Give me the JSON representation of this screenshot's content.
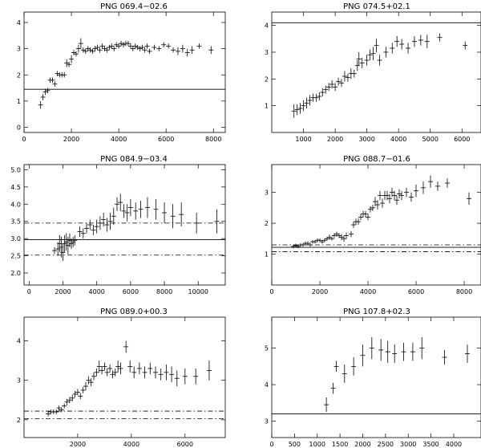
{
  "chart_data": [
    {
      "type": "scatter",
      "title": "PNG 069.4−02.6",
      "xlim": [
        0,
        8500
      ],
      "ylim": [
        -0.2,
        4.4
      ],
      "xticks": [
        0,
        2000,
        4000,
        6000,
        8000
      ],
      "yticks": [
        0,
        1,
        2,
        3,
        4
      ],
      "hlines": [
        {
          "y": 1.45,
          "style": "solid"
        }
      ],
      "points": [
        [
          700,
          0.85,
          0.15
        ],
        [
          800,
          1.15,
          0.12
        ],
        [
          900,
          1.35,
          0.12
        ],
        [
          1000,
          1.4,
          0.1
        ],
        [
          1100,
          1.8,
          0.1
        ],
        [
          1200,
          1.8,
          0.1
        ],
        [
          1300,
          1.65,
          0.1
        ],
        [
          1400,
          2.05,
          0.1
        ],
        [
          1500,
          2.0,
          0.1
        ],
        [
          1600,
          2.0,
          0.1
        ],
        [
          1700,
          2.0,
          0.1
        ],
        [
          1800,
          2.45,
          0.15
        ],
        [
          1900,
          2.4,
          0.1
        ],
        [
          2000,
          2.6,
          0.15
        ],
        [
          2100,
          2.85,
          0.1
        ],
        [
          2200,
          2.8,
          0.1
        ],
        [
          2300,
          3.0,
          0.15
        ],
        [
          2400,
          3.2,
          0.2
        ],
        [
          2500,
          2.95,
          0.1
        ],
        [
          2600,
          2.9,
          0.1
        ],
        [
          2700,
          3.0,
          0.1
        ],
        [
          2800,
          2.95,
          0.1
        ],
        [
          2900,
          2.9,
          0.1
        ],
        [
          3000,
          3.0,
          0.1
        ],
        [
          3100,
          3.05,
          0.1
        ],
        [
          3200,
          2.95,
          0.1
        ],
        [
          3300,
          3.1,
          0.1
        ],
        [
          3400,
          3.0,
          0.1
        ],
        [
          3500,
          2.95,
          0.1
        ],
        [
          3600,
          3.05,
          0.1
        ],
        [
          3700,
          3.1,
          0.1
        ],
        [
          3800,
          3.0,
          0.1
        ],
        [
          3900,
          3.15,
          0.1
        ],
        [
          4000,
          3.1,
          0.1
        ],
        [
          4100,
          3.2,
          0.1
        ],
        [
          4200,
          3.15,
          0.1
        ],
        [
          4300,
          3.2,
          0.1
        ],
        [
          4400,
          3.2,
          0.1
        ],
        [
          4500,
          3.1,
          0.1
        ],
        [
          4600,
          3.0,
          0.1
        ],
        [
          4700,
          3.1,
          0.1
        ],
        [
          4800,
          3.05,
          0.1
        ],
        [
          4900,
          3.0,
          0.1
        ],
        [
          5000,
          3.05,
          0.1
        ],
        [
          5100,
          2.95,
          0.1
        ],
        [
          5200,
          3.1,
          0.1
        ],
        [
          5300,
          2.9,
          0.1
        ],
        [
          5500,
          3.05,
          0.1
        ],
        [
          5700,
          3.0,
          0.1
        ],
        [
          5900,
          3.15,
          0.1
        ],
        [
          6100,
          3.1,
          0.1
        ],
        [
          6300,
          2.95,
          0.1
        ],
        [
          6500,
          2.9,
          0.15
        ],
        [
          6700,
          3.0,
          0.15
        ],
        [
          6900,
          2.85,
          0.15
        ],
        [
          7100,
          2.95,
          0.15
        ],
        [
          7400,
          3.1,
          0.1
        ],
        [
          7900,
          2.95,
          0.15
        ]
      ]
    },
    {
      "type": "scatter",
      "title": "PNG 074.5+02.1",
      "xlim": [
        0,
        6600
      ],
      "ylim": [
        0.0,
        4.5
      ],
      "xticks": [
        1000,
        2000,
        3000,
        4000,
        5000,
        6000
      ],
      "yticks": [
        1,
        2,
        3,
        4
      ],
      "hlines": [
        {
          "y": 4.1,
          "style": "solid"
        }
      ],
      "points": [
        [
          700,
          0.8,
          0.25
        ],
        [
          800,
          0.85,
          0.2
        ],
        [
          900,
          0.9,
          0.2
        ],
        [
          1000,
          1.0,
          0.2
        ],
        [
          1100,
          1.1,
          0.2
        ],
        [
          1200,
          1.2,
          0.2
        ],
        [
          1300,
          1.3,
          0.15
        ],
        [
          1400,
          1.3,
          0.15
        ],
        [
          1500,
          1.35,
          0.15
        ],
        [
          1600,
          1.5,
          0.15
        ],
        [
          1700,
          1.6,
          0.15
        ],
        [
          1800,
          1.7,
          0.15
        ],
        [
          1900,
          1.8,
          0.15
        ],
        [
          2000,
          1.7,
          0.15
        ],
        [
          2100,
          1.9,
          0.15
        ],
        [
          2200,
          1.85,
          0.15
        ],
        [
          2300,
          2.1,
          0.2
        ],
        [
          2400,
          2.05,
          0.15
        ],
        [
          2500,
          2.2,
          0.2
        ],
        [
          2600,
          2.2,
          0.15
        ],
        [
          2700,
          2.5,
          0.2
        ],
        [
          2750,
          2.75,
          0.25
        ],
        [
          2850,
          2.6,
          0.2
        ],
        [
          3000,
          2.7,
          0.2
        ],
        [
          3100,
          2.9,
          0.2
        ],
        [
          3200,
          2.95,
          0.25
        ],
        [
          3300,
          3.25,
          0.25
        ],
        [
          3400,
          2.7,
          0.2
        ],
        [
          3600,
          3.0,
          0.2
        ],
        [
          3800,
          3.15,
          0.2
        ],
        [
          3950,
          3.4,
          0.2
        ],
        [
          4100,
          3.3,
          0.2
        ],
        [
          4300,
          3.15,
          0.2
        ],
        [
          4500,
          3.4,
          0.2
        ],
        [
          4700,
          3.45,
          0.2
        ],
        [
          4900,
          3.4,
          0.25
        ],
        [
          5300,
          3.55,
          0.15
        ],
        [
          6100,
          3.25,
          0.15
        ]
      ]
    },
    {
      "type": "scatter",
      "title": "PNG 084.9−03.4",
      "xlim": [
        -300,
        11600
      ],
      "ylim": [
        1.65,
        5.15
      ],
      "xticks": [
        0,
        2000,
        4000,
        6000,
        8000,
        10000
      ],
      "yticks": [
        2.0,
        2.5,
        3.0,
        3.5,
        4.0,
        4.5,
        5.0
      ],
      "hlines": [
        {
          "y": 3.45,
          "style": "dashdot"
        },
        {
          "y": 2.97,
          "style": "solid"
        },
        {
          "y": 2.52,
          "style": "dashdot"
        }
      ],
      "points": [
        [
          1500,
          2.65,
          0.1
        ],
        [
          1700,
          2.7,
          0.2
        ],
        [
          1800,
          2.85,
          0.25
        ],
        [
          1900,
          2.75,
          0.3
        ],
        [
          2000,
          2.6,
          0.25
        ],
        [
          2100,
          2.85,
          0.25
        ],
        [
          2200,
          2.9,
          0.25
        ],
        [
          2300,
          2.8,
          0.25
        ],
        [
          2400,
          2.95,
          0.2
        ],
        [
          2500,
          2.85,
          0.15
        ],
        [
          2600,
          2.9,
          0.15
        ],
        [
          2700,
          2.95,
          0.15
        ],
        [
          3000,
          3.2,
          0.15
        ],
        [
          3200,
          3.15,
          0.15
        ],
        [
          3400,
          3.3,
          0.15
        ],
        [
          3600,
          3.4,
          0.15
        ],
        [
          3800,
          3.25,
          0.15
        ],
        [
          4000,
          3.35,
          0.2
        ],
        [
          4200,
          3.45,
          0.2
        ],
        [
          4400,
          3.55,
          0.2
        ],
        [
          4600,
          3.4,
          0.2
        ],
        [
          4800,
          3.5,
          0.25
        ],
        [
          5000,
          3.65,
          0.25
        ],
        [
          5200,
          4.0,
          0.2
        ],
        [
          5400,
          4.05,
          0.25
        ],
        [
          5600,
          3.8,
          0.2
        ],
        [
          5800,
          3.75,
          0.25
        ],
        [
          6000,
          3.9,
          0.25
        ],
        [
          6300,
          3.8,
          0.25
        ],
        [
          6600,
          3.85,
          0.25
        ],
        [
          7000,
          3.9,
          0.3
        ],
        [
          7500,
          3.85,
          0.3
        ],
        [
          8000,
          3.75,
          0.3
        ],
        [
          8500,
          3.65,
          0.35
        ],
        [
          9000,
          3.7,
          0.35
        ],
        [
          9900,
          3.45,
          0.3
        ],
        [
          11100,
          3.5,
          0.35
        ]
      ]
    },
    {
      "type": "scatter",
      "title": "PNG 088.7−01.6",
      "xlim": [
        0,
        8700
      ],
      "ylim": [
        0.0,
        3.9
      ],
      "xticks": [
        0,
        2000,
        4000,
        6000,
        8000
      ],
      "yticks": [
        1,
        2,
        3
      ],
      "hlines": [
        {
          "y": 1.3,
          "style": "dashdot"
        },
        {
          "y": 1.22,
          "style": "solid"
        },
        {
          "y": 1.08,
          "style": "dashdot"
        }
      ],
      "points": [
        [
          900,
          1.25,
          0.06
        ],
        [
          1000,
          1.28,
          0.06
        ],
        [
          1100,
          1.25,
          0.06
        ],
        [
          1200,
          1.3,
          0.06
        ],
        [
          1300,
          1.3,
          0.06
        ],
        [
          1400,
          1.35,
          0.06
        ],
        [
          1500,
          1.35,
          0.06
        ],
        [
          1600,
          1.3,
          0.06
        ],
        [
          1700,
          1.4,
          0.06
        ],
        [
          1800,
          1.4,
          0.06
        ],
        [
          1900,
          1.45,
          0.06
        ],
        [
          2000,
          1.45,
          0.06
        ],
        [
          2100,
          1.4,
          0.06
        ],
        [
          2200,
          1.45,
          0.06
        ],
        [
          2300,
          1.5,
          0.06
        ],
        [
          2400,
          1.55,
          0.08
        ],
        [
          2500,
          1.5,
          0.06
        ],
        [
          2600,
          1.6,
          0.08
        ],
        [
          2700,
          1.65,
          0.08
        ],
        [
          2800,
          1.6,
          0.08
        ],
        [
          2900,
          1.55,
          0.1
        ],
        [
          3000,
          1.5,
          0.1
        ],
        [
          3100,
          1.6,
          0.1
        ],
        [
          3300,
          1.65,
          0.1
        ],
        [
          3400,
          1.95,
          0.1
        ],
        [
          3500,
          2.05,
          0.1
        ],
        [
          3600,
          2.05,
          0.1
        ],
        [
          3700,
          2.2,
          0.1
        ],
        [
          3800,
          2.3,
          0.1
        ],
        [
          3900,
          2.3,
          0.1
        ],
        [
          4000,
          2.2,
          0.1
        ],
        [
          4100,
          2.45,
          0.1
        ],
        [
          4200,
          2.5,
          0.1
        ],
        [
          4300,
          2.7,
          0.15
        ],
        [
          4400,
          2.6,
          0.15
        ],
        [
          4500,
          2.9,
          0.15
        ],
        [
          4600,
          2.65,
          0.15
        ],
        [
          4700,
          2.9,
          0.15
        ],
        [
          4800,
          2.9,
          0.15
        ],
        [
          4900,
          2.8,
          0.15
        ],
        [
          5000,
          3.0,
          0.15
        ],
        [
          5100,
          2.9,
          0.15
        ],
        [
          5200,
          2.75,
          0.15
        ],
        [
          5300,
          2.95,
          0.15
        ],
        [
          5400,
          2.9,
          0.15
        ],
        [
          5600,
          3.0,
          0.15
        ],
        [
          5800,
          2.85,
          0.15
        ],
        [
          6000,
          3.05,
          0.2
        ],
        [
          6300,
          3.15,
          0.2
        ],
        [
          6600,
          3.35,
          0.2
        ],
        [
          6900,
          3.2,
          0.15
        ],
        [
          7300,
          3.3,
          0.15
        ],
        [
          8200,
          2.8,
          0.2
        ]
      ]
    },
    {
      "type": "scatter",
      "title": "PNG 089.0+00.3",
      "xlim": [
        0,
        7500
      ],
      "ylim": [
        1.55,
        4.6
      ],
      "xticks": [
        2000,
        4000,
        6000
      ],
      "yticks": [
        2,
        3,
        4
      ],
      "hlines": [
        {
          "y": 2.22,
          "style": "dashdot"
        },
        {
          "y": 2.03,
          "style": "dashdot"
        }
      ],
      "points": [
        [
          900,
          2.15,
          0.06
        ],
        [
          1000,
          2.2,
          0.06
        ],
        [
          1100,
          2.2,
          0.06
        ],
        [
          1200,
          2.2,
          0.06
        ],
        [
          1300,
          2.3,
          0.06
        ],
        [
          1400,
          2.25,
          0.06
        ],
        [
          1500,
          2.35,
          0.06
        ],
        [
          1600,
          2.45,
          0.08
        ],
        [
          1700,
          2.5,
          0.08
        ],
        [
          1800,
          2.55,
          0.08
        ],
        [
          1900,
          2.65,
          0.08
        ],
        [
          2000,
          2.7,
          0.08
        ],
        [
          2100,
          2.6,
          0.08
        ],
        [
          2200,
          2.75,
          0.08
        ],
        [
          2300,
          2.85,
          0.1
        ],
        [
          2400,
          3.0,
          0.1
        ],
        [
          2500,
          2.95,
          0.1
        ],
        [
          2600,
          3.1,
          0.1
        ],
        [
          2700,
          3.2,
          0.1
        ],
        [
          2800,
          3.35,
          0.15
        ],
        [
          2900,
          3.25,
          0.1
        ],
        [
          3000,
          3.35,
          0.1
        ],
        [
          3100,
          3.2,
          0.1
        ],
        [
          3200,
          3.3,
          0.1
        ],
        [
          3300,
          3.15,
          0.1
        ],
        [
          3400,
          3.2,
          0.1
        ],
        [
          3500,
          3.35,
          0.15
        ],
        [
          3600,
          3.3,
          0.15
        ],
        [
          3800,
          3.85,
          0.15
        ],
        [
          3950,
          3.35,
          0.15
        ],
        [
          4100,
          3.2,
          0.15
        ],
        [
          4300,
          3.3,
          0.15
        ],
        [
          4500,
          3.2,
          0.15
        ],
        [
          4700,
          3.3,
          0.15
        ],
        [
          4900,
          3.2,
          0.15
        ],
        [
          5100,
          3.15,
          0.15
        ],
        [
          5300,
          3.2,
          0.2
        ],
        [
          5500,
          3.15,
          0.2
        ],
        [
          5700,
          3.05,
          0.2
        ],
        [
          6000,
          3.1,
          0.2
        ],
        [
          6400,
          3.1,
          0.2
        ],
        [
          6900,
          3.25,
          0.25
        ]
      ]
    },
    {
      "type": "scatter",
      "title": "PNG 107.8+02.3",
      "xlim": [
        0,
        4600
      ],
      "ylim": [
        2.55,
        5.85
      ],
      "xticks": [
        0,
        500,
        1000,
        1500,
        2000,
        2500,
        3000,
        3500,
        4000
      ],
      "yticks": [
        3,
        4,
        5
      ],
      "hlines": [
        {
          "y": 3.2,
          "style": "solid"
        }
      ],
      "points": [
        [
          1200,
          3.45,
          0.2
        ],
        [
          1350,
          3.9,
          0.15
        ],
        [
          1420,
          4.5,
          0.15
        ],
        [
          1600,
          4.3,
          0.25
        ],
        [
          1800,
          4.5,
          0.25
        ],
        [
          2000,
          4.8,
          0.3
        ],
        [
          2200,
          5.0,
          0.3
        ],
        [
          2400,
          4.95,
          0.3
        ],
        [
          2550,
          4.9,
          0.3
        ],
        [
          2700,
          4.85,
          0.25
        ],
        [
          2900,
          4.9,
          0.25
        ],
        [
          3100,
          4.9,
          0.25
        ],
        [
          3300,
          5.0,
          0.3
        ],
        [
          3800,
          4.75,
          0.2
        ],
        [
          4300,
          4.85,
          0.25
        ]
      ]
    }
  ]
}
